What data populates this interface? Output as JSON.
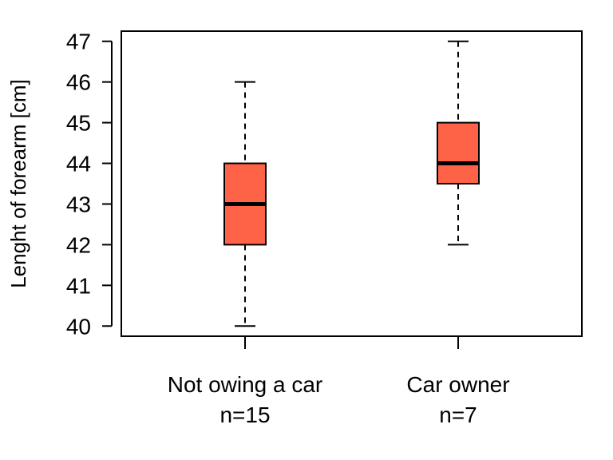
{
  "chart_data": {
    "type": "box",
    "ylabel": "Lenght of forearm [cm]",
    "ylim": [
      39.75,
      47.25
    ],
    "yticks": [
      40,
      41,
      42,
      43,
      44,
      45,
      46,
      47
    ],
    "box_color": "#FF6347",
    "groups": [
      {
        "label": "Not owing a car",
        "n_label": "n=15",
        "min": 40,
        "q1": 42,
        "median": 43,
        "q3": 44,
        "max": 46
      },
      {
        "label": "Car owner",
        "n_label": "n=7",
        "min": 42,
        "q1": 43.5,
        "median": 44,
        "q3": 45,
        "max": 47
      }
    ]
  }
}
